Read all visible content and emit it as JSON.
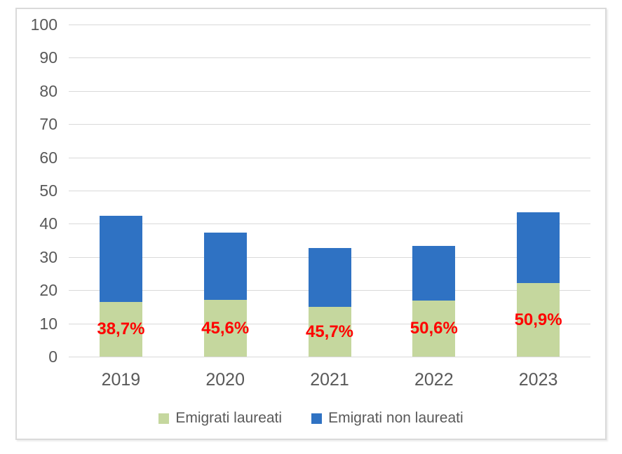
{
  "chart_data": {
    "type": "bar",
    "stacked": true,
    "title": "",
    "categories": [
      "2019",
      "2020",
      "2021",
      "2022",
      "2023"
    ],
    "series": [
      {
        "name": "Emigrati laureati",
        "color": "#c5d79e",
        "values": [
          16.4,
          17.0,
          14.9,
          16.9,
          22.1
        ]
      },
      {
        "name": "Emigrati non laureati",
        "color": "#2f72c3",
        "values": [
          26.0,
          20.3,
          17.7,
          16.5,
          21.3
        ]
      }
    ],
    "totals": [
      42.4,
      37.3,
      32.6,
      33.4,
      43.4
    ],
    "bar_labels": [
      "38,7%",
      "45,6%",
      "45,7%",
      "50,6%",
      "50,9%"
    ],
    "bar_label_color": "#ff0000",
    "ylim": [
      0,
      100
    ],
    "ytick_step": 10,
    "yticks": [
      0,
      10,
      20,
      30,
      40,
      50,
      60,
      70,
      80,
      90,
      100
    ],
    "grid": true,
    "gridline_color": "#d9d9d9",
    "axis_text_color": "#595959",
    "legend_position": "bottom",
    "xlabel": "",
    "ylabel": ""
  }
}
